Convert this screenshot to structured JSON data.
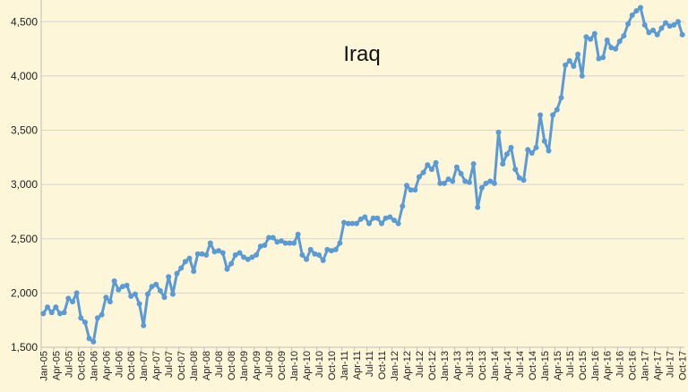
{
  "chart_data": {
    "type": "line",
    "title": "Iraq",
    "xlabel": "",
    "ylabel": "",
    "ylim": [
      1500,
      4700
    ],
    "grid": true,
    "yticks": [
      1500,
      2000,
      2500,
      3000,
      3500,
      4000,
      4500
    ],
    "ytick_labels": [
      "1,500",
      "2,000",
      "2,500",
      "3,000",
      "3,500",
      "4,000",
      "4,500"
    ],
    "xtick_labels": [
      "Jan-05",
      "Apr-05",
      "Jul-05",
      "Oct-05",
      "Jan-06",
      "Apr-06",
      "Jul-06",
      "Oct-06",
      "Jan-07",
      "Apr-07",
      "Jul-07",
      "Oct-07",
      "Jan-08",
      "Apr-08",
      "Jul-08",
      "Oct-08",
      "Jan-09",
      "Apr-09",
      "Jul-09",
      "Oct-09",
      "Jan-10",
      "Apr-10",
      "Jul-10",
      "Oct-10",
      "Jan-11",
      "Apr-11",
      "Jul-11",
      "Oct-11",
      "Jan-12",
      "Apr-12",
      "Jul-12",
      "Oct-12",
      "Jan-13",
      "Apr-13",
      "Jul-13",
      "Oct-13",
      "Jan-14",
      "Apr-14",
      "Jul-14",
      "Oct-14",
      "Jan-15",
      "Apr-15",
      "Jul-15",
      "Oct-15",
      "Jan-16",
      "Apr-16",
      "Jul-16",
      "Oct-16",
      "Jan-17",
      "Apr-17",
      "Jul-17",
      "Oct-17"
    ],
    "series_color": "#5b9bd5",
    "values": [
      1810,
      1870,
      1820,
      1870,
      1810,
      1820,
      1950,
      1920,
      2000,
      1770,
      1730,
      1580,
      1550,
      1770,
      1800,
      1960,
      1920,
      2110,
      2030,
      2060,
      2070,
      1970,
      1990,
      1900,
      1700,
      1990,
      2060,
      2080,
      2020,
      1960,
      2150,
      1990,
      2180,
      2230,
      2290,
      2320,
      2200,
      2360,
      2360,
      2350,
      2460,
      2380,
      2390,
      2370,
      2220,
      2270,
      2350,
      2370,
      2330,
      2310,
      2330,
      2350,
      2430,
      2440,
      2510,
      2510,
      2470,
      2480,
      2460,
      2460,
      2460,
      2540,
      2350,
      2310,
      2400,
      2360,
      2350,
      2300,
      2400,
      2390,
      2400,
      2460,
      2650,
      2640,
      2640,
      2640,
      2680,
      2700,
      2640,
      2690,
      2690,
      2640,
      2690,
      2700,
      2670,
      2640,
      2800,
      2990,
      2950,
      2950,
      3070,
      3110,
      3180,
      3140,
      3200,
      3010,
      3010,
      3050,
      3030,
      3160,
      3100,
      3030,
      3020,
      3190,
      2790,
      2970,
      3010,
      3030,
      3010,
      3480,
      3190,
      3280,
      3340,
      3140,
      3060,
      3040,
      3320,
      3290,
      3340,
      3640,
      3400,
      3310,
      3640,
      3690,
      3800,
      4100,
      4140,
      4090,
      4200,
      4000,
      4360,
      4340,
      4390,
      4160,
      4170,
      4330,
      4260,
      4250,
      4320,
      4370,
      4480,
      4560,
      4600,
      4630,
      4470,
      4400,
      4420,
      4380,
      4440,
      4490,
      4460,
      4470,
      4500,
      4380
    ]
  }
}
